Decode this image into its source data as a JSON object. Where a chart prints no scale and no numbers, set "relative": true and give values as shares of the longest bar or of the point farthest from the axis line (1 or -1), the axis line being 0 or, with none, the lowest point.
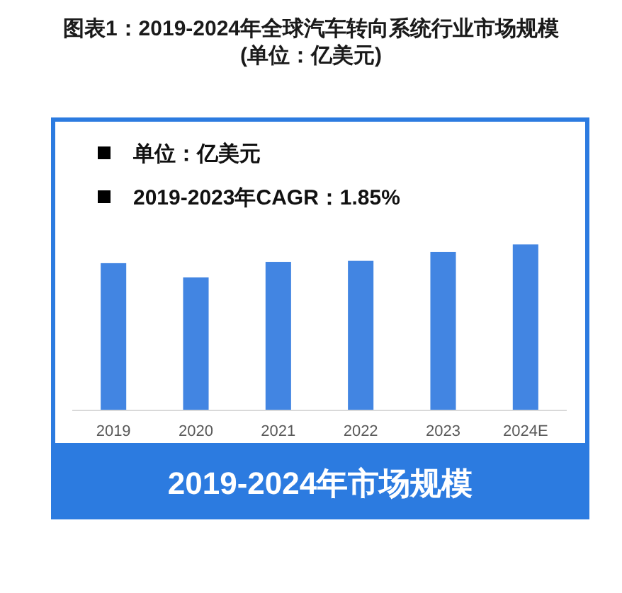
{
  "chart_data": {
    "type": "bar",
    "title": "图表1：2019-2024年全球汽车转向系统行业市场规模(单位：亿美元)",
    "xlabel": "2019-2024年市场规模",
    "annotations": [
      "单位：亿美元",
      "2019-2023年CAGR：1.85%"
    ],
    "categories": [
      "2019",
      "2020",
      "2021",
      "2022",
      "2023",
      "2024E"
    ],
    "values": [
      0.887,
      0.801,
      0.895,
      0.901,
      0.955,
      1.0
    ],
    "color": "#4285e2",
    "relative": true
  }
}
